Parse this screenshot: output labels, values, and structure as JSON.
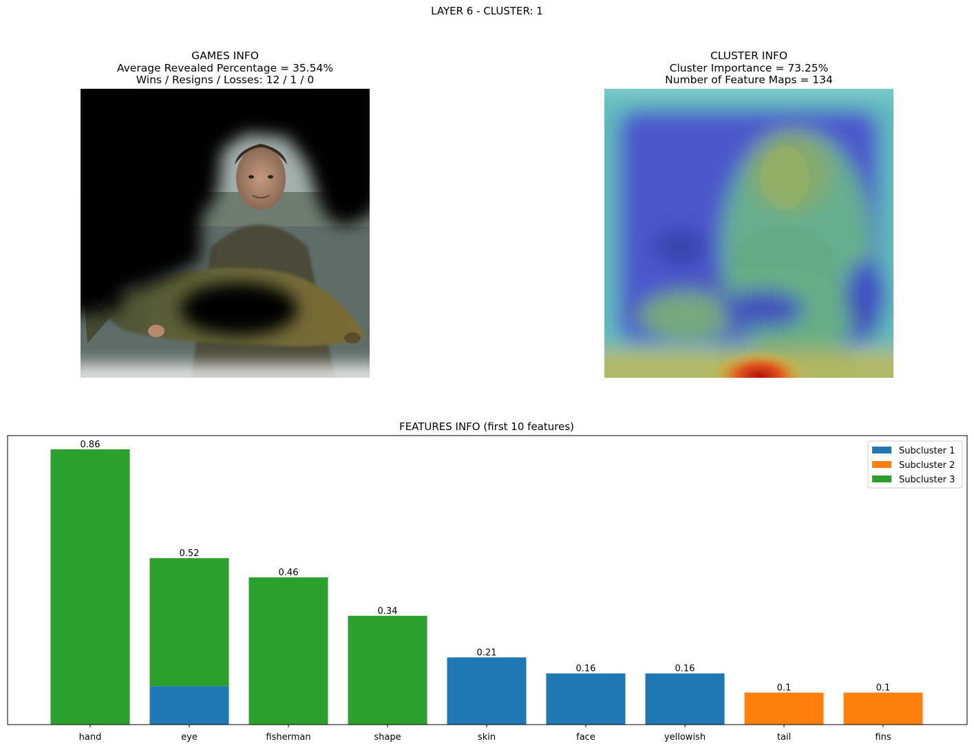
{
  "suptitle": "LAYER 6 - CLUSTER: 1",
  "games_info": {
    "title": "GAMES INFO",
    "line1": "Average Revealed Percentage = 35.54%",
    "line2": "Wins / Resigns / Losses: 12 / 1 / 0"
  },
  "cluster_info": {
    "title": "CLUSTER INFO",
    "line1": "Cluster Importance = 73.25%",
    "line2": "Number of Feature Maps = 134"
  },
  "colors": {
    "subcluster1": "#1f77b4",
    "subcluster2": "#ff7f0e",
    "subcluster3": "#2ca02c"
  },
  "chart_data": {
    "type": "bar",
    "stacked": true,
    "title": "FEATURES INFO (first 10 features)",
    "categories": [
      "hand",
      "eye",
      "fisherman",
      "shape",
      "skin",
      "face",
      "yellowish",
      "tail",
      "fins"
    ],
    "series": [
      {
        "name": "Subcluster 1",
        "color": "#1f77b4",
        "values": [
          0,
          0.12,
          0,
          0,
          0.21,
          0.16,
          0.16,
          0,
          0
        ]
      },
      {
        "name": "Subcluster 2",
        "color": "#ff7f0e",
        "values": [
          0,
          0,
          0,
          0,
          0,
          0,
          0,
          0.1,
          0.1
        ]
      },
      {
        "name": "Subcluster 3",
        "color": "#2ca02c",
        "values": [
          0.86,
          0.4,
          0.46,
          0.34,
          0,
          0,
          0,
          0,
          0
        ]
      }
    ],
    "totals": [
      0.86,
      0.52,
      0.46,
      0.34,
      0.21,
      0.16,
      0.16,
      0.1,
      0.1
    ],
    "data_labels": [
      "0.86",
      "0.52",
      "0.46",
      "0.34",
      "0.21",
      "0.16",
      "0.16",
      "0.1",
      "0.1"
    ],
    "ylim": [
      0,
      0.903
    ],
    "y_ticks_shown": false,
    "grid": false,
    "legend_position": "upper-right"
  }
}
